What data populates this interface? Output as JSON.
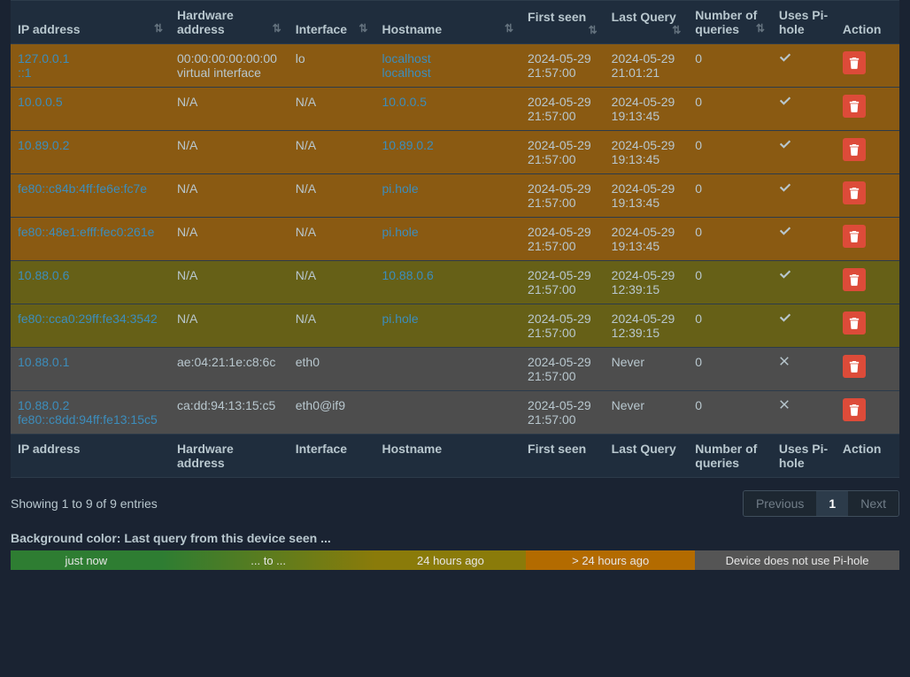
{
  "table": {
    "headers": {
      "ip": "IP address",
      "hw": "Hardware address",
      "iface": "Interface",
      "host": "Hostname",
      "first": "First seen",
      "last": "Last Query",
      "num": "Number of queries",
      "uses": "Uses Pi-hole",
      "action": "Action"
    },
    "footer": {
      "ip": "IP address",
      "hw": "Hardware address",
      "iface": "Interface",
      "host": "Hostname",
      "first": "First seen",
      "last": "Last Query",
      "num": "Number of queries",
      "uses": "Uses Pi-hole",
      "action": "Action"
    },
    "rows": [
      {
        "bg": "bg-orange",
        "ips": [
          "127.0.0.1",
          "::1"
        ],
        "hw_line1": "00:00:00:00:00:00",
        "hw_line2": "virtual interface",
        "iface": "lo",
        "hosts": [
          "localhost",
          "localhost"
        ],
        "first": "2024-05-29 21:57:00",
        "last": "2024-05-29 21:01:21",
        "num": "0",
        "uses": true
      },
      {
        "bg": "bg-orange",
        "ips": [
          "10.0.0.5"
        ],
        "hw_line1": "N/A",
        "hw_line2": "",
        "iface": "N/A",
        "hosts": [
          "10.0.0.5"
        ],
        "first": "2024-05-29 21:57:00",
        "last": "2024-05-29 19:13:45",
        "num": "0",
        "uses": true
      },
      {
        "bg": "bg-orange",
        "ips": [
          "10.89.0.2"
        ],
        "hw_line1": "N/A",
        "hw_line2": "",
        "iface": "N/A",
        "hosts": [
          "10.89.0.2"
        ],
        "first": "2024-05-29 21:57:00",
        "last": "2024-05-29 19:13:45",
        "num": "0",
        "uses": true
      },
      {
        "bg": "bg-orange",
        "ips": [
          "fe80::c84b:4ff:fe6e:fc7e"
        ],
        "hw_line1": "N/A",
        "hw_line2": "",
        "iface": "N/A",
        "hosts": [
          "pi.hole"
        ],
        "first": "2024-05-29 21:57:00",
        "last": "2024-05-29 19:13:45",
        "num": "0",
        "uses": true
      },
      {
        "bg": "bg-orange",
        "ips": [
          "fe80::48e1:efff:fec0:261e"
        ],
        "hw_line1": "N/A",
        "hw_line2": "",
        "iface": "N/A",
        "hosts": [
          "pi.hole"
        ],
        "first": "2024-05-29 21:57:00",
        "last": "2024-05-29 19:13:45",
        "num": "0",
        "uses": true
      },
      {
        "bg": "bg-khaki",
        "ips": [
          "10.88.0.6"
        ],
        "hw_line1": "N/A",
        "hw_line2": "",
        "iface": "N/A",
        "hosts": [
          "10.88.0.6"
        ],
        "first": "2024-05-29 21:57:00",
        "last": "2024-05-29 12:39:15",
        "num": "0",
        "uses": true
      },
      {
        "bg": "bg-khaki",
        "ips": [
          "fe80::cca0:29ff:fe34:3542"
        ],
        "hw_line1": "N/A",
        "hw_line2": "",
        "iface": "N/A",
        "hosts": [
          "pi.hole"
        ],
        "first": "2024-05-29 21:57:00",
        "last": "2024-05-29 12:39:15",
        "num": "0",
        "uses": true
      },
      {
        "bg": "bg-grey",
        "ips": [
          "10.88.0.1"
        ],
        "hw_line1": "ae:04:21:1e:c8:6c",
        "hw_line2": "",
        "iface": "eth0",
        "hosts": [],
        "first": "2024-05-29 21:57:00",
        "last": "Never",
        "num": "0",
        "uses": false
      },
      {
        "bg": "bg-grey",
        "ips": [
          "10.88.0.2",
          "fe80::c8dd:94ff:fe13:15c5"
        ],
        "hw_line1": "ca:dd:94:13:15:c5",
        "hw_line2": "",
        "iface": "eth0@if9",
        "hosts": [],
        "first": "2024-05-29 21:57:00",
        "last": "Never",
        "num": "0",
        "uses": false
      }
    ]
  },
  "entries_info": "Showing 1 to 9 of 9 entries",
  "pagination": {
    "prev": "Previous",
    "page": "1",
    "next": "Next"
  },
  "legend": {
    "title": "Background color: Last query from this device seen ...",
    "now": "just now",
    "to": "... to ...",
    "h24": "24 hours ago",
    "gt24": "> 24 hours ago",
    "nouse": "Device does not use Pi-hole"
  },
  "colors": {
    "link": "#3c8dbc",
    "delete_btn": "#dd4b39",
    "header_bg": "#1f2d3d",
    "row_border": "#2c3b4a",
    "page_bg": "#1a2332",
    "text": "#b8c7ce"
  }
}
